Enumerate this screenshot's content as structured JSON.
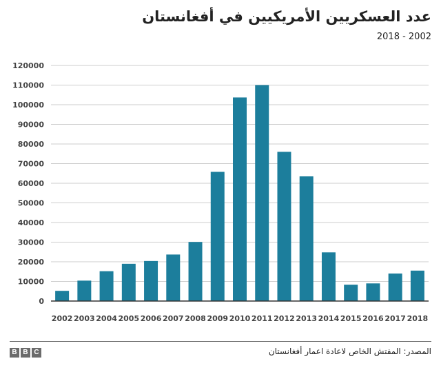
{
  "header": {
    "title": "عدد العسكريين الأمريكيين في أفغانستان",
    "subtitle": "2018 - 2002"
  },
  "footer": {
    "source": "المصدر: المفتش الخاص لاعادة اعمار أفغانستان",
    "logo_letters": [
      "B",
      "B",
      "C"
    ]
  },
  "colors": {
    "bar": "#1c7e9c",
    "grid": "#cccccc",
    "axis": "#333333"
  },
  "chart_data": {
    "type": "bar",
    "title": "عدد العسكريين الأمريكيين في أفغانستان",
    "subtitle": "2018 - 2002",
    "xlabel": "",
    "ylabel": "",
    "categories": [
      "2002",
      "2003",
      "2004",
      "2005",
      "2006",
      "2007",
      "2008",
      "2009",
      "2010",
      "2011",
      "2012",
      "2013",
      "2014",
      "2015",
      "2016",
      "2017",
      "2018"
    ],
    "values": [
      5200,
      10400,
      15200,
      19000,
      20400,
      23700,
      30100,
      65800,
      103700,
      110000,
      76000,
      63500,
      24800,
      8300,
      9000,
      14000,
      15500
    ],
    "ylim": [
      0,
      120000
    ],
    "yticks": [
      0,
      10000,
      20000,
      30000,
      40000,
      50000,
      60000,
      70000,
      80000,
      90000,
      100000,
      110000,
      120000
    ],
    "grid": true
  }
}
